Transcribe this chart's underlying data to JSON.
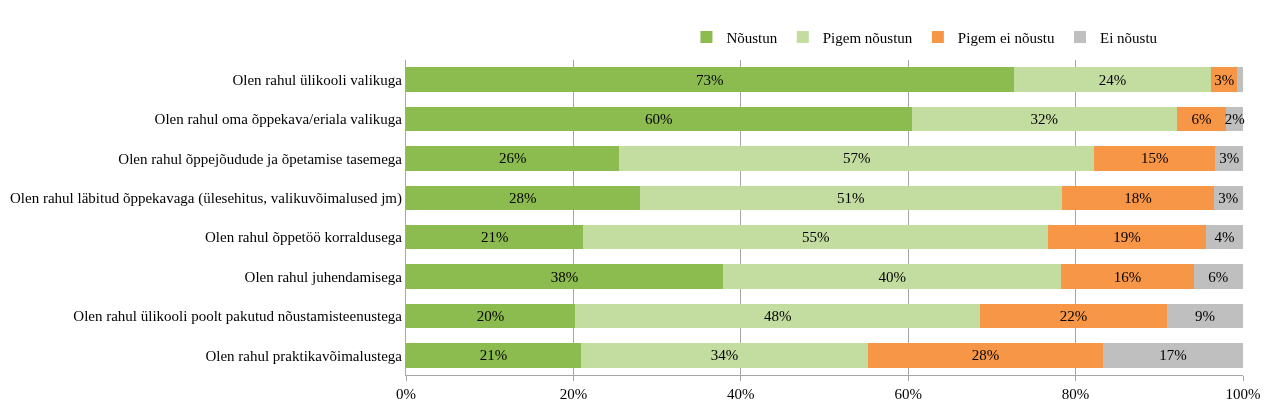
{
  "chart_data": {
    "type": "bar",
    "orientation": "horizontal",
    "stacked": true,
    "categories": [
      "Olen rahul ülikooli valikuga",
      "Olen rahul oma õppekava/eriala valikuga",
      "Olen rahul õppejõudude ja õpetamise tasemega",
      "Olen rahul läbitud õppekavaga (ülesehitus, valikuvõimalused jm)",
      "Olen rahul õppetöö korraldusega",
      "Olen rahul juhendamisega",
      "Olen rahul ülikooli poolt pakutud nõustamisteenustega",
      "Olen rahul praktikavõimalustega"
    ],
    "series": [
      {
        "name": "Nõustun",
        "color": "#8cbc4f",
        "values": [
          72.6,
          60.4,
          25.5,
          27.9,
          21.2,
          37.9,
          20.2,
          20.9
        ],
        "value_labels": [
          "73%",
          "60%",
          "26%",
          "28%",
          "21%",
          "38%",
          "20%",
          "21%"
        ]
      },
      {
        "name": "Pigem nõustun",
        "color": "#c3dca0",
        "values": [
          23.6,
          31.7,
          56.7,
          50.5,
          55.5,
          40.4,
          48.4,
          34.3
        ],
        "value_labels": [
          "24%",
          "32%",
          "57%",
          "51%",
          "55%",
          "40%",
          "48%",
          "34%"
        ]
      },
      {
        "name": "Pigem ei nõustu",
        "color": "#f79646",
        "values": [
          3.1,
          5.9,
          14.5,
          18.1,
          18.9,
          15.8,
          22.3,
          28.1
        ],
        "value_labels": [
          "3%",
          "6%",
          "15%",
          "18%",
          "19%",
          "16%",
          "22%",
          "28%"
        ]
      },
      {
        "name": "Ei nõustu",
        "color": "#bfbfbf",
        "values": [
          0.7,
          2.0,
          3.3,
          3.5,
          4.4,
          5.9,
          9.1,
          16.7
        ],
        "value_labels": [
          null,
          "2%",
          "3%",
          "3%",
          "4%",
          "6%",
          "9%",
          "17%"
        ]
      }
    ],
    "xlim": [
      0,
      100
    ],
    "xticks": [
      {
        "value": 0,
        "label": "0%"
      },
      {
        "value": 20,
        "label": "20%"
      },
      {
        "value": 40,
        "label": "40%"
      },
      {
        "value": 60,
        "label": "60%"
      },
      {
        "value": 80,
        "label": "80%"
      },
      {
        "value": 100,
        "label": "100%"
      }
    ],
    "grid": "x",
    "legend": "top"
  }
}
